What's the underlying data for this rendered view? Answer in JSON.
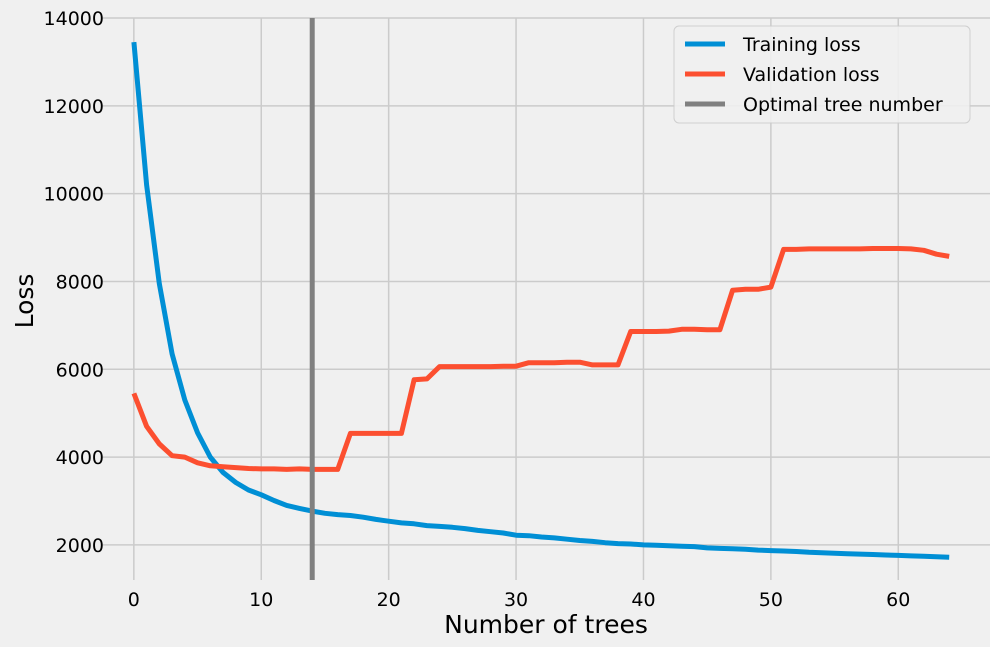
{
  "chart_data": {
    "type": "line",
    "title": "",
    "xlabel": "Number of trees",
    "ylabel": "Loss",
    "xlim": [
      -2.5,
      67.2
    ],
    "ylim": [
      1200,
      14000
    ],
    "xticks": [
      0,
      10,
      20,
      30,
      40,
      50,
      60
    ],
    "yticks": [
      2000,
      4000,
      6000,
      8000,
      10000,
      12000,
      14000
    ],
    "grid": true,
    "legend_position": "top-right",
    "x": [
      0,
      1,
      2,
      3,
      4,
      5,
      6,
      7,
      8,
      9,
      10,
      11,
      12,
      13,
      14,
      15,
      16,
      17,
      18,
      19,
      20,
      21,
      22,
      23,
      24,
      25,
      26,
      27,
      28,
      29,
      30,
      31,
      32,
      33,
      34,
      35,
      36,
      37,
      38,
      39,
      40,
      41,
      42,
      43,
      44,
      45,
      46,
      47,
      48,
      49,
      50,
      51,
      52,
      53,
      54,
      55,
      56,
      57,
      58,
      59,
      60,
      61,
      62,
      63,
      64
    ],
    "series": [
      {
        "name": "Training loss",
        "color": "#008fd5",
        "values": [
          13450,
          10200,
          7950,
          6350,
          5300,
          4550,
          4000,
          3650,
          3420,
          3250,
          3140,
          3010,
          2900,
          2830,
          2770,
          2720,
          2690,
          2670,
          2630,
          2580,
          2540,
          2500,
          2480,
          2440,
          2420,
          2400,
          2370,
          2330,
          2300,
          2270,
          2220,
          2210,
          2180,
          2160,
          2130,
          2100,
          2080,
          2050,
          2030,
          2020,
          2000,
          1990,
          1980,
          1970,
          1960,
          1930,
          1920,
          1910,
          1900,
          1880,
          1870,
          1860,
          1850,
          1830,
          1820,
          1810,
          1800,
          1790,
          1780,
          1770,
          1760,
          1750,
          1740,
          1730,
          1720
        ]
      },
      {
        "name": "Validation loss",
        "color": "#fc4f30",
        "values": [
          5450,
          4700,
          4300,
          4030,
          4000,
          3870,
          3800,
          3780,
          3760,
          3740,
          3730,
          3730,
          3720,
          3730,
          3720,
          3720,
          3720,
          4540,
          4540,
          4540,
          4540,
          4540,
          5760,
          5780,
          6060,
          6060,
          6060,
          6060,
          6060,
          6070,
          6070,
          6150,
          6150,
          6150,
          6160,
          6160,
          6100,
          6100,
          6100,
          6860,
          6860,
          6860,
          6870,
          6910,
          6910,
          6900,
          6900,
          7800,
          7820,
          7820,
          7870,
          8730,
          8730,
          8740,
          8740,
          8740,
          8740,
          8740,
          8750,
          8750,
          8750,
          8740,
          8710,
          8620,
          8570
        ]
      }
    ],
    "vlines": [
      {
        "name": "Optimal tree number",
        "x": 14,
        "color": "#808080"
      }
    ]
  }
}
